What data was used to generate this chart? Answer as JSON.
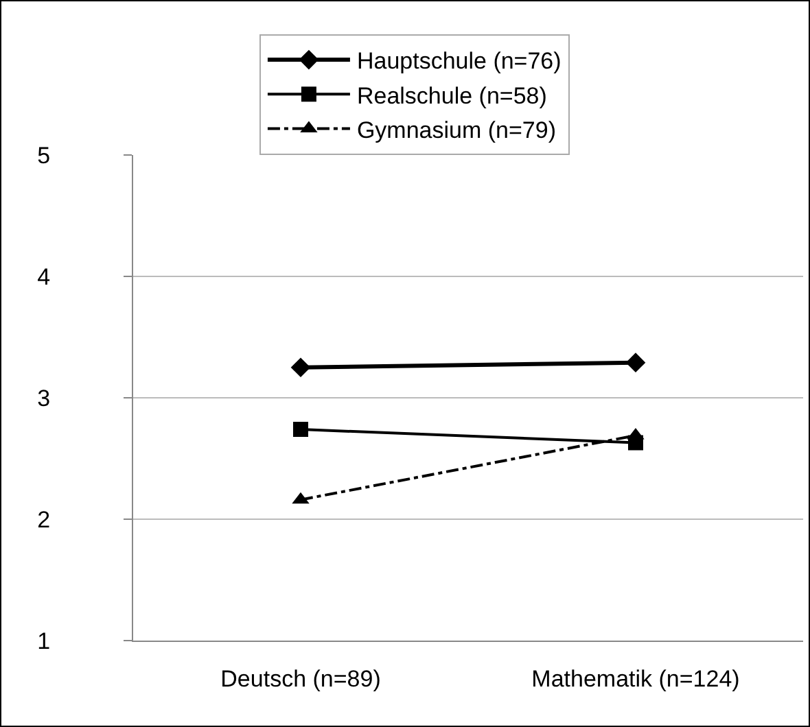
{
  "chart_data": {
    "type": "line",
    "categories": [
      "Deutsch (n=89)",
      "Mathematik (n=124)"
    ],
    "series": [
      {
        "name": "Hauptschule (n=76)",
        "color": "#000000",
        "values": [
          3.25,
          3.29
        ],
        "marker": "diamond",
        "line_style": "solid"
      },
      {
        "name": "Realschule (n=58)",
        "color": "#000000",
        "values": [
          2.74,
          2.63
        ],
        "marker": "square",
        "line_style": "solid"
      },
      {
        "name": "Gymnasium (n=79)",
        "color": "#000000",
        "values": [
          2.16,
          2.69
        ],
        "marker": "triangle",
        "line_style": "dashdot"
      }
    ],
    "ylim": [
      1,
      5
    ],
    "yticks": [
      1,
      2,
      3,
      4,
      5
    ],
    "grid": "y",
    "legend": "top"
  }
}
